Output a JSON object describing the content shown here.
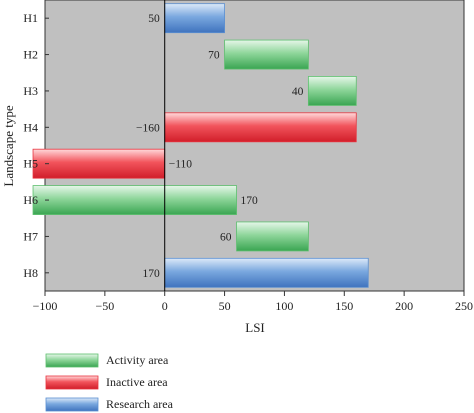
{
  "chart_data": {
    "type": "bar",
    "orientation": "horizontal",
    "title": "",
    "xlabel": "LSI",
    "ylabel": "Landscape type",
    "xlim": [
      -100,
      250
    ],
    "xticks": [
      -100,
      -50,
      0,
      50,
      100,
      150,
      200,
      250
    ],
    "xtick_labels": [
      "−100",
      "−50",
      "0",
      "50",
      "100",
      "150",
      "200",
      "250"
    ],
    "grid": false,
    "background": "#c0c0c0",
    "legend_position": "bottom",
    "categories": [
      "H1",
      "H2",
      "H3",
      "H4",
      "H5",
      "H6",
      "H7",
      "H8"
    ],
    "bars": [
      {
        "category": "H1",
        "start": 0,
        "end": 50,
        "label": "50",
        "series": "Research area"
      },
      {
        "category": "H2",
        "start": 50,
        "end": 120,
        "label": "70",
        "series": "Activity area"
      },
      {
        "category": "H3",
        "start": 120,
        "end": 160,
        "label": "40",
        "series": "Activity area"
      },
      {
        "category": "H4",
        "start": 160,
        "end": 0,
        "label": "−160",
        "series": "Inactive area"
      },
      {
        "category": "H5",
        "start": 0,
        "end": -110,
        "label": "−110",
        "series": "Inactive area"
      },
      {
        "category": "H6",
        "start": -110,
        "end": 60,
        "label": "170",
        "series": "Activity area"
      },
      {
        "category": "H7",
        "start": 60,
        "end": 120,
        "label": "60",
        "series": "Activity area"
      },
      {
        "category": "H8",
        "start": 0,
        "end": 170,
        "label": "170",
        "series": "Research area"
      }
    ],
    "series": [
      {
        "name": "Activity area",
        "color": "#5dbf6e"
      },
      {
        "name": "Inactive area",
        "color": "#e8343f"
      },
      {
        "name": "Research area",
        "color": "#5b8fd1"
      }
    ]
  }
}
